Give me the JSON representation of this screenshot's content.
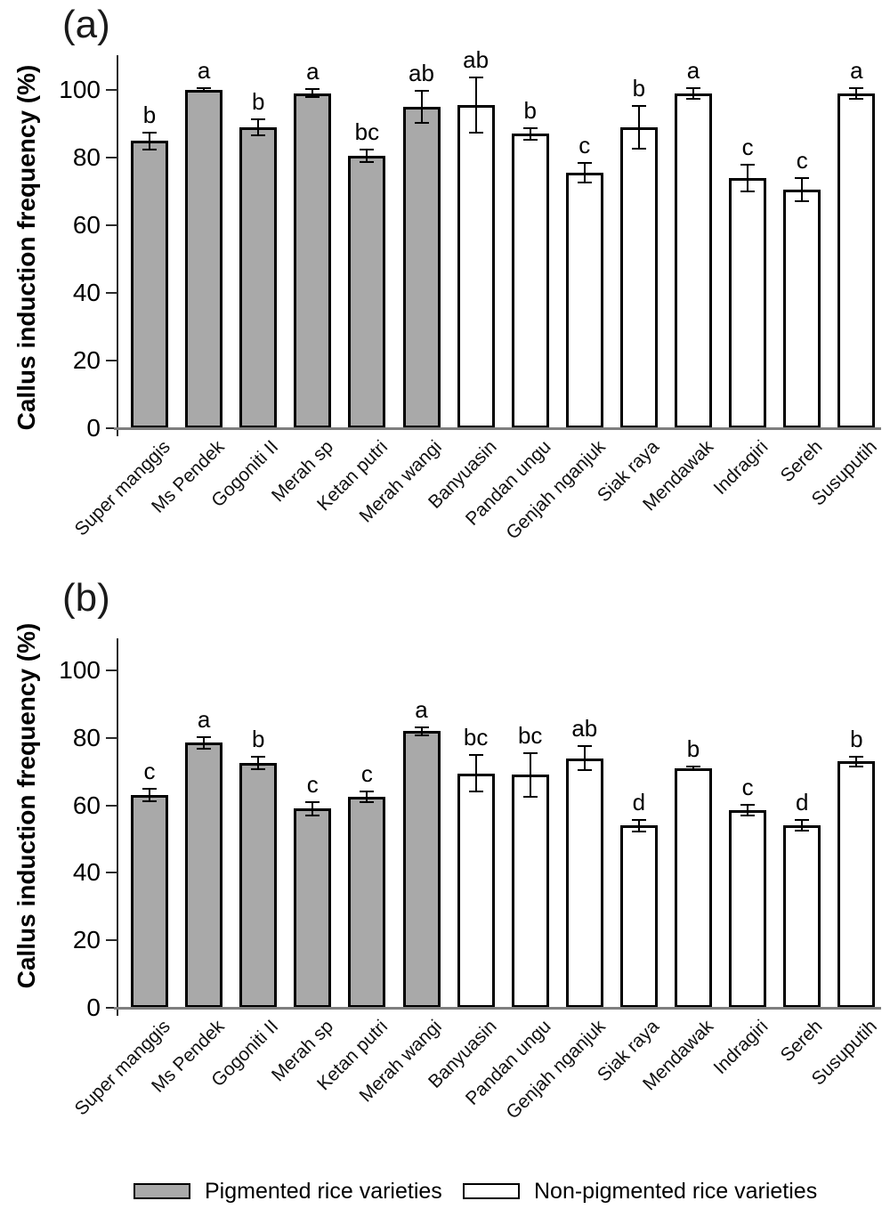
{
  "legend": {
    "items": [
      {
        "label": "Pigmented rice varieties",
        "color": "#a9a9a9"
      },
      {
        "label": "Non-pigmented rice varieties",
        "color": "#ffffff"
      }
    ]
  },
  "chart_data": [
    {
      "panel": "(a)",
      "type": "bar",
      "ylabel": "Callus induction frequency (%)",
      "ylim": [
        0,
        110
      ],
      "yticks": [
        0,
        20,
        40,
        60,
        80,
        100
      ],
      "grid": false,
      "legend_position": "bottom",
      "categories": [
        "Super manggis",
        "Ms Pendek",
        "Gogoniti II",
        "Merah sp",
        "Ketan putri",
        "Merah wangi",
        "Banyuasin",
        "Pandan ungu",
        "Genjah nganjuk",
        "Siak raya",
        "Mendawak",
        "Indragiri",
        "Sereh",
        "Susuputih"
      ],
      "pigmented_count": 6,
      "series": [
        {
          "name": "Callus induction frequency (%)",
          "values": [
            85,
            100,
            89,
            99,
            80.5,
            95,
            95.5,
            87,
            75.5,
            89,
            99,
            74,
            70.5,
            99
          ],
          "errors": [
            2.5,
            0.5,
            2.3,
            1.2,
            1.8,
            4.8,
            8.2,
            1.8,
            2.8,
            6.3,
            1.6,
            4,
            3.4,
            1.6
          ],
          "letters": [
            "b",
            "a",
            "b",
            "a",
            "bc",
            "ab",
            "ab",
            "b",
            "c",
            "b",
            "a",
            "c",
            "c",
            "a"
          ]
        }
      ]
    },
    {
      "panel": "(b)",
      "type": "bar",
      "ylabel": "Callus induction frequency (%)",
      "ylim": [
        0,
        110
      ],
      "yticks": [
        0,
        20,
        40,
        60,
        80,
        100
      ],
      "grid": false,
      "legend_position": "bottom",
      "categories": [
        "Super manggis",
        "Ms Pendek",
        "Gogoniti II",
        "Merah sp",
        "Ketan putri",
        "Merah wangi",
        "Banyuasin",
        "Pandan ungu",
        "Genjah nganjuk",
        "Siak raya",
        "Mendawak",
        "Indragiri",
        "Sereh",
        "Susuputih"
      ],
      "pigmented_count": 6,
      "series": [
        {
          "name": "Callus induction frequency (%)",
          "values": [
            63,
            78.5,
            72.5,
            59,
            62.5,
            82,
            69.5,
            69,
            74,
            54,
            71,
            58.5,
            54,
            73
          ],
          "errors": [
            1.8,
            1.6,
            1.8,
            2,
            1.6,
            1.2,
            5.4,
            6.4,
            3.6,
            1.8,
            0.4,
            1.6,
            1.6,
            1.4
          ],
          "letters": [
            "c",
            "a",
            "b",
            "c",
            "c",
            "a",
            "bc",
            "bc",
            "ab",
            "d",
            "b",
            "c",
            "d",
            "b"
          ]
        }
      ]
    }
  ]
}
